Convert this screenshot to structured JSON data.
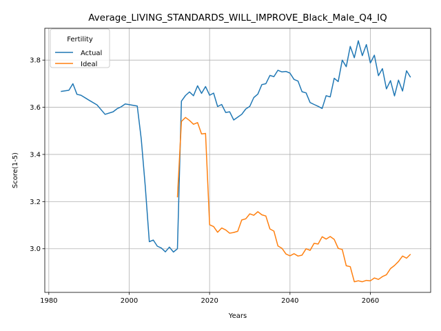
{
  "chart_data": {
    "type": "line",
    "title": "Average_LIVING_STANDARDS_WILL_IMPROVE_Black_Male_Q4_IQ",
    "xlabel": "Years",
    "ylabel": "Score(1-5)",
    "xlim": [
      1979,
      2075
    ],
    "ylim": [
      2.815,
      3.935
    ],
    "xticks": [
      1980,
      2000,
      2020,
      2040,
      2060
    ],
    "yticks": [
      3.0,
      3.2,
      3.4,
      3.6,
      3.8
    ],
    "grid": true,
    "legend": {
      "title": "Fertility",
      "placement": "top-left"
    },
    "series": [
      {
        "name": "Actual",
        "color": "#1f77b4",
        "points": [
          [
            1983,
            3.667
          ],
          [
            1985,
            3.672
          ],
          [
            1986,
            3.7
          ],
          [
            1987,
            3.655
          ],
          [
            1988,
            3.651
          ],
          [
            1990,
            3.63
          ],
          [
            1992,
            3.61
          ],
          [
            1994,
            3.57
          ],
          [
            1996,
            3.581
          ],
          [
            1997,
            3.594
          ],
          [
            1998,
            3.602
          ],
          [
            1999,
            3.614
          ],
          [
            2002,
            3.605
          ],
          [
            2003,
            3.465
          ],
          [
            2004,
            3.265
          ],
          [
            2005,
            3.03
          ],
          [
            2006,
            3.037
          ],
          [
            2007,
            3.011
          ],
          [
            2008,
            3.003
          ],
          [
            2009,
            2.987
          ],
          [
            2010,
            3.007
          ],
          [
            2011,
            2.986
          ],
          [
            2012,
            3.0
          ],
          [
            2013,
            3.626
          ],
          [
            2014,
            3.65
          ],
          [
            2015,
            3.665
          ],
          [
            2016,
            3.649
          ],
          [
            2017,
            3.691
          ],
          [
            2018,
            3.659
          ],
          [
            2019,
            3.688
          ],
          [
            2020,
            3.651
          ],
          [
            2021,
            3.66
          ],
          [
            2022,
            3.603
          ],
          [
            2023,
            3.612
          ],
          [
            2024,
            3.578
          ],
          [
            2025,
            3.581
          ],
          [
            2026,
            3.546
          ],
          [
            2027,
            3.558
          ],
          [
            2028,
            3.57
          ],
          [
            2029,
            3.593
          ],
          [
            2030,
            3.604
          ],
          [
            2031,
            3.641
          ],
          [
            2032,
            3.656
          ],
          [
            2033,
            3.696
          ],
          [
            2034,
            3.7
          ],
          [
            2035,
            3.735
          ],
          [
            2036,
            3.73
          ],
          [
            2037,
            3.757
          ],
          [
            2038,
            3.75
          ],
          [
            2039,
            3.752
          ],
          [
            2040,
            3.745
          ],
          [
            2041,
            3.718
          ],
          [
            2042,
            3.711
          ],
          [
            2043,
            3.666
          ],
          [
            2044,
            3.661
          ],
          [
            2045,
            3.62
          ],
          [
            2046,
            3.612
          ],
          [
            2047,
            3.604
          ],
          [
            2048,
            3.595
          ],
          [
            2049,
            3.649
          ],
          [
            2050,
            3.644
          ],
          [
            2051,
            3.723
          ],
          [
            2052,
            3.709
          ],
          [
            2053,
            3.8
          ],
          [
            2054,
            3.772
          ],
          [
            2055,
            3.858
          ],
          [
            2056,
            3.81
          ],
          [
            2057,
            3.882
          ],
          [
            2058,
            3.819
          ],
          [
            2059,
            3.866
          ],
          [
            2060,
            3.788
          ],
          [
            2061,
            3.821
          ],
          [
            2062,
            3.734
          ],
          [
            2063,
            3.764
          ],
          [
            2064,
            3.678
          ],
          [
            2065,
            3.713
          ],
          [
            2066,
            3.648
          ],
          [
            2067,
            3.715
          ],
          [
            2068,
            3.669
          ],
          [
            2069,
            3.755
          ],
          [
            2070,
            3.727
          ]
        ]
      },
      {
        "name": "Ideal",
        "color": "#ff7f0e",
        "points": [
          [
            2012,
            3.218
          ],
          [
            2013,
            3.54
          ],
          [
            2014,
            3.557
          ],
          [
            2015,
            3.544
          ],
          [
            2016,
            3.528
          ],
          [
            2017,
            3.535
          ],
          [
            2018,
            3.487
          ],
          [
            2019,
            3.489
          ],
          [
            2020,
            3.102
          ],
          [
            2021,
            3.094
          ],
          [
            2022,
            3.07
          ],
          [
            2023,
            3.088
          ],
          [
            2024,
            3.08
          ],
          [
            2025,
            3.066
          ],
          [
            2026,
            3.069
          ],
          [
            2027,
            3.074
          ],
          [
            2028,
            3.122
          ],
          [
            2029,
            3.127
          ],
          [
            2030,
            3.148
          ],
          [
            2031,
            3.142
          ],
          [
            2032,
            3.157
          ],
          [
            2033,
            3.144
          ],
          [
            2034,
            3.139
          ],
          [
            2035,
            3.084
          ],
          [
            2036,
            3.075
          ],
          [
            2037,
            3.012
          ],
          [
            2038,
            3.002
          ],
          [
            2039,
            2.978
          ],
          [
            2040,
            2.97
          ],
          [
            2041,
            2.979
          ],
          [
            2042,
            2.969
          ],
          [
            2043,
            2.973
          ],
          [
            2044,
            3.0
          ],
          [
            2045,
            2.993
          ],
          [
            2046,
            3.023
          ],
          [
            2047,
            3.02
          ],
          [
            2048,
            3.051
          ],
          [
            2049,
            3.041
          ],
          [
            2050,
            3.052
          ],
          [
            2051,
            3.04
          ],
          [
            2052,
            3.002
          ],
          [
            2053,
            2.997
          ],
          [
            2054,
            2.928
          ],
          [
            2055,
            2.924
          ],
          [
            2056,
            2.86
          ],
          [
            2057,
            2.864
          ],
          [
            2058,
            2.86
          ],
          [
            2059,
            2.866
          ],
          [
            2060,
            2.864
          ],
          [
            2061,
            2.876
          ],
          [
            2062,
            2.87
          ],
          [
            2063,
            2.882
          ],
          [
            2064,
            2.89
          ],
          [
            2065,
            2.916
          ],
          [
            2066,
            2.929
          ],
          [
            2067,
            2.946
          ],
          [
            2068,
            2.969
          ],
          [
            2069,
            2.96
          ],
          [
            2070,
            2.977
          ]
        ]
      }
    ]
  }
}
